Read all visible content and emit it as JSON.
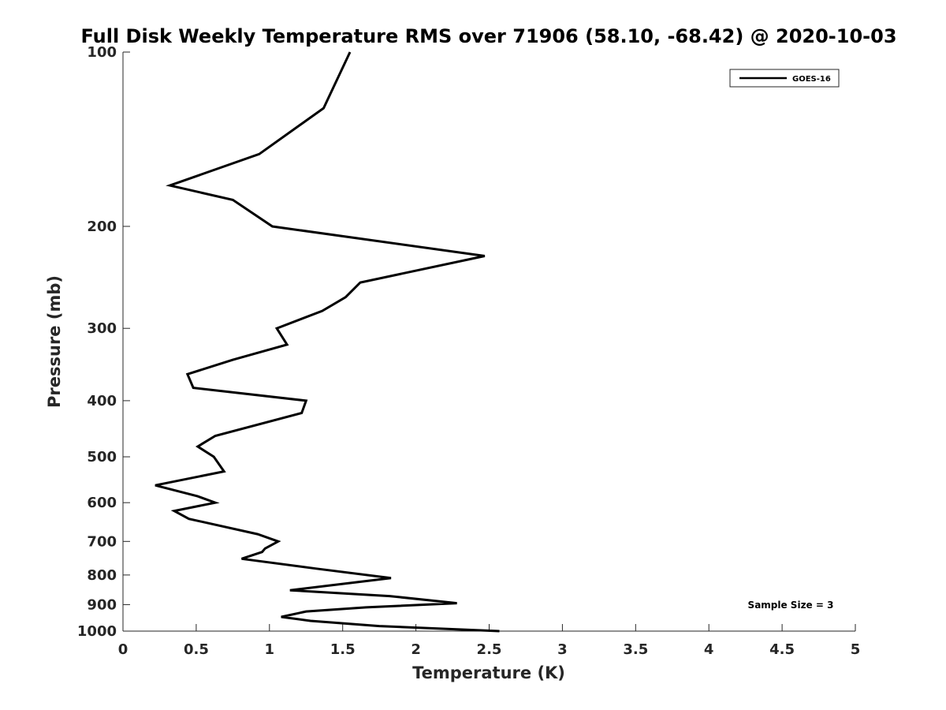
{
  "chart_data": {
    "type": "line",
    "title": "Full Disk Weekly Temperature RMS over 71906 (58.10, -68.42) @ 2020-10-03",
    "xlabel": "Temperature (K)",
    "ylabel": "Pressure (mb)",
    "xlim": [
      0,
      5
    ],
    "ylim": [
      100,
      1000
    ],
    "yscale": "log",
    "y_reversed": true,
    "grid": false,
    "legend_position": "top-right",
    "x_ticks": [
      0,
      0.5,
      1,
      1.5,
      2,
      2.5,
      3,
      3.5,
      4,
      4.5,
      5
    ],
    "x_tick_labels": [
      "0",
      "0.5",
      "1",
      "1.5",
      "2",
      "2.5",
      "3",
      "3.5",
      "4",
      "4.5",
      "5"
    ],
    "y_ticks": [
      100,
      200,
      300,
      400,
      500,
      600,
      700,
      800,
      900,
      1000
    ],
    "y_tick_labels": [
      "100",
      "200",
      "300",
      "400",
      "500",
      "600",
      "700",
      "800",
      "900",
      "1000"
    ],
    "series": [
      {
        "name": "GOES-16",
        "color": "#000000",
        "points": [
          [
            1.55,
            100
          ],
          [
            1.37,
            125
          ],
          [
            0.93,
            150
          ],
          [
            0.32,
            170
          ],
          [
            0.75,
            180
          ],
          [
            1.02,
            200
          ],
          [
            2.47,
            225
          ],
          [
            1.62,
            250
          ],
          [
            1.52,
            265
          ],
          [
            1.36,
            280
          ],
          [
            1.05,
            300
          ],
          [
            1.12,
            320
          ],
          [
            0.75,
            340
          ],
          [
            0.44,
            360
          ],
          [
            0.48,
            380
          ],
          [
            1.25,
            400
          ],
          [
            1.22,
            420
          ],
          [
            0.63,
            460
          ],
          [
            0.51,
            480
          ],
          [
            0.62,
            500
          ],
          [
            0.69,
            530
          ],
          [
            0.22,
            560
          ],
          [
            0.51,
            585
          ],
          [
            0.63,
            600
          ],
          [
            0.35,
            620
          ],
          [
            0.45,
            640
          ],
          [
            0.92,
            680
          ],
          [
            1.06,
            700
          ],
          [
            0.97,
            720
          ],
          [
            0.95,
            730
          ],
          [
            0.81,
            750
          ],
          [
            1.32,
            780
          ],
          [
            1.83,
            810
          ],
          [
            1.14,
            850
          ],
          [
            1.82,
            870
          ],
          [
            2.28,
            895
          ],
          [
            1.66,
            910
          ],
          [
            1.25,
            925
          ],
          [
            1.08,
            945
          ],
          [
            1.28,
            960
          ],
          [
            1.75,
            980
          ],
          [
            2.57,
            1000
          ]
        ]
      }
    ],
    "annotation": "Sample Size = 3"
  }
}
